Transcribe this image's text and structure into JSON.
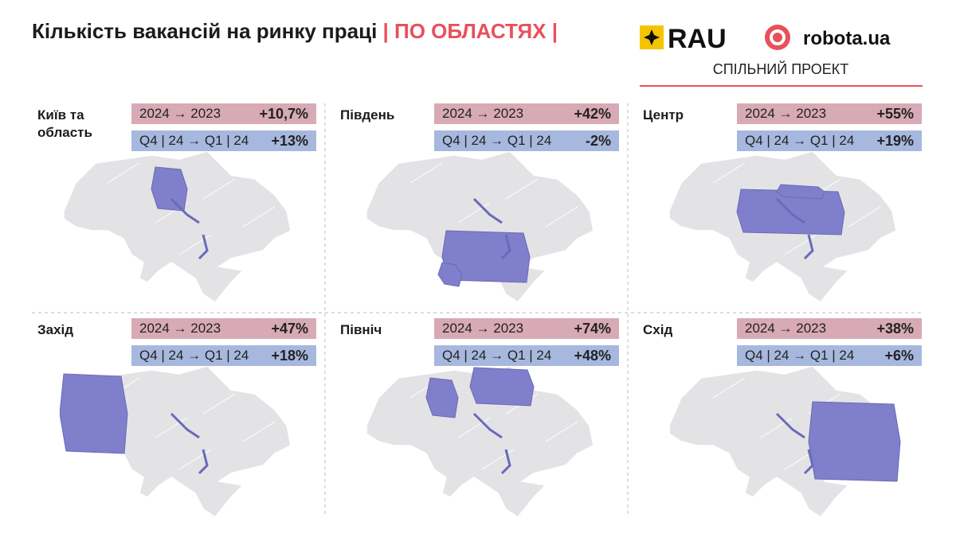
{
  "header": {
    "title": "Кількість вакансій на ринку праці",
    "highlight": "| ПО ОБЛАСТЯХ |",
    "logos": [
      "RAU",
      "robota.ua"
    ],
    "subtitle": "СПІЛЬНИЙ ПРОЕКТ"
  },
  "panels": [
    {
      "region": "Київ та область",
      "rows": [
        {
          "label": "2024 → 2023",
          "value": "+10,7%"
        },
        {
          "label": "Q4 | 24 → Q1 | 24",
          "value": "+13%"
        }
      ]
    },
    {
      "region": "Південь",
      "rows": [
        {
          "label": "2024 → 2023",
          "value": "+42%"
        },
        {
          "label": "Q4 | 24 → Q1 | 24",
          "value": "-2%"
        }
      ]
    },
    {
      "region": "Центр",
      "rows": [
        {
          "label": "2024 → 2023",
          "value": "+55%"
        },
        {
          "label": "Q4 | 24 → Q1 | 24",
          "value": "+19%"
        }
      ]
    },
    {
      "region": "Захід",
      "rows": [
        {
          "label": "2024 → 2023",
          "value": "+47%"
        },
        {
          "label": "Q4 | 24 → Q1 | 24",
          "value": "+18%"
        }
      ]
    },
    {
      "region": "Північ",
      "rows": [
        {
          "label": "2024 → 2023",
          "value": "+74%"
        },
        {
          "label": "Q4 | 24 → Q1 | 24",
          "value": "+48%"
        }
      ]
    },
    {
      "region": "Схід",
      "rows": [
        {
          "label": "2024 → 2023",
          "value": "+38%"
        },
        {
          "label": "Q4 | 24 → Q1 | 24",
          "value": "+6%"
        }
      ]
    }
  ]
}
